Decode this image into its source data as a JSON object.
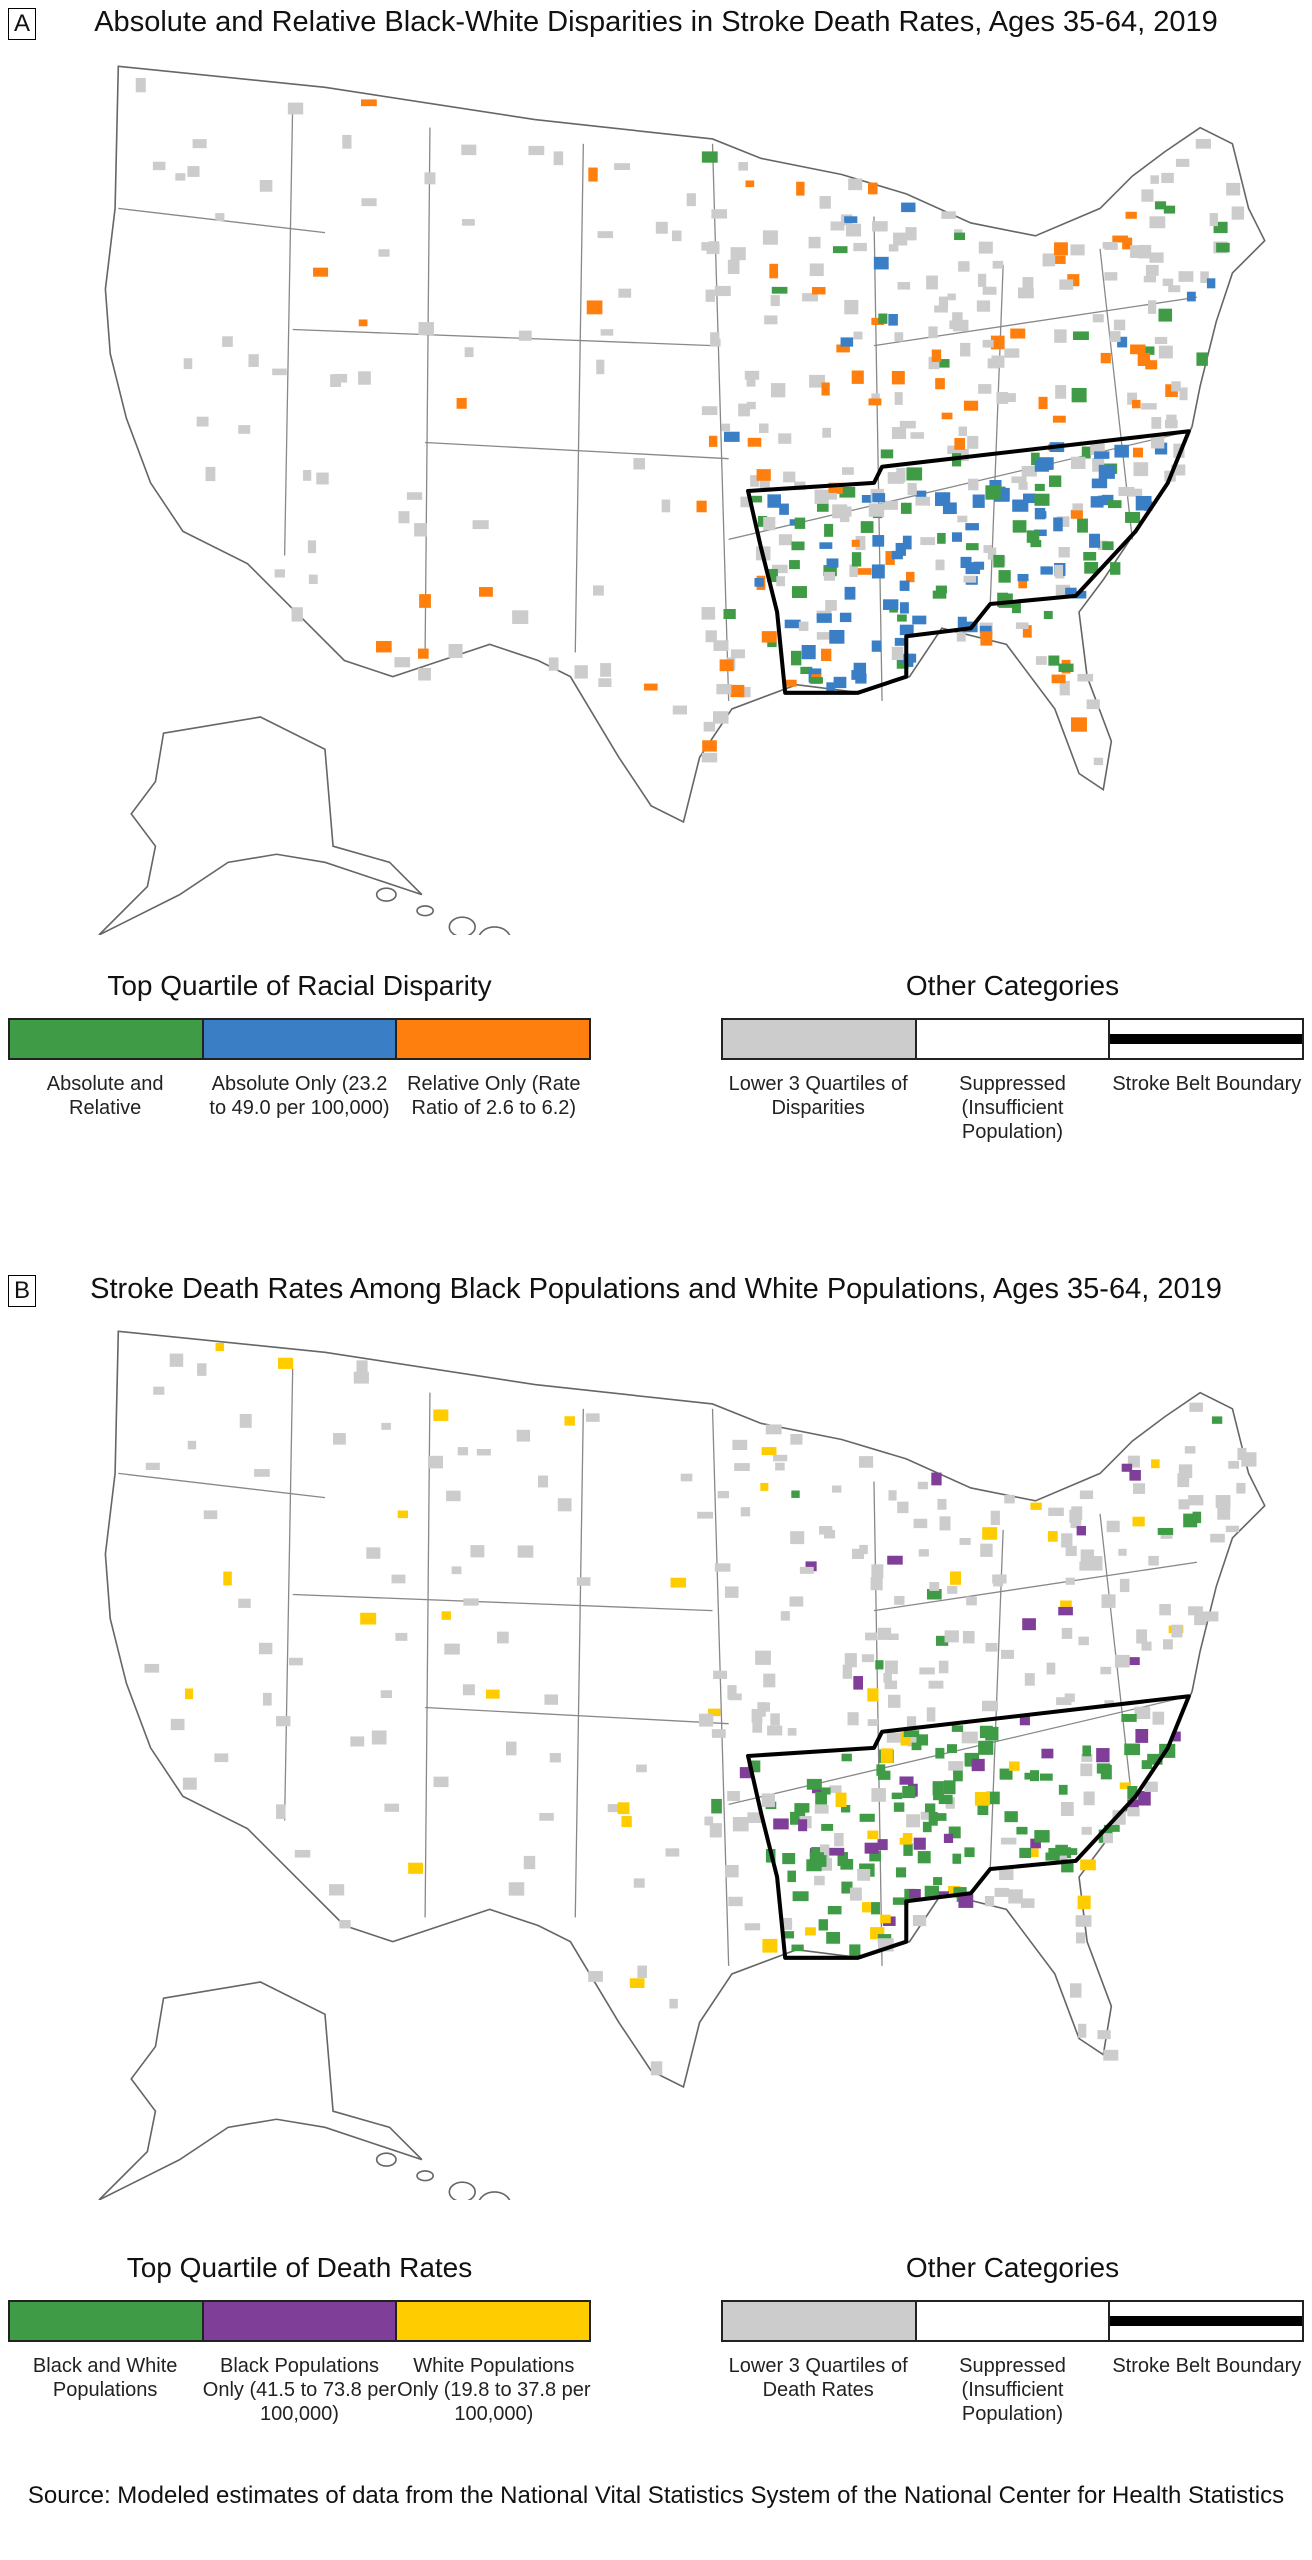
{
  "panel_a": {
    "letter": "A",
    "title": "Absolute and Relative Black-White Disparities in Stroke Death Rates, Ages 35-64, 2019",
    "legend_main": {
      "title": "Top Quartile of Racial Disparity",
      "items": [
        {
          "label": "Absolute and Relative",
          "color": "#3f9b45"
        },
        {
          "label": "Absolute Only (23.2 to 49.0 per 100,000)",
          "color": "#3a7fc6"
        },
        {
          "label": "Relative Only (Rate Ratio of 2.6 to 6.2)",
          "color": "#ff7f0e"
        }
      ]
    },
    "legend_other": {
      "title": "Other Categories",
      "items": [
        {
          "label": "Lower 3 Quartiles of Disparities",
          "color": "#cccccc"
        },
        {
          "label": "Suppressed (Insufficient Population)",
          "color": "#ffffff"
        },
        {
          "label": "Stroke Belt Boundary",
          "color": "#000000"
        }
      ]
    }
  },
  "panel_b": {
    "letter": "B",
    "title": "Stroke Death Rates Among Black Populations and White Populations, Ages 35-64, 2019",
    "legend_main": {
      "title": "Top Quartile of Death Rates",
      "items": [
        {
          "label": "Black and White Populations",
          "color": "#3f9b45"
        },
        {
          "label": "Black Populations Only (41.5 to 73.8 per 100,000)",
          "color": "#7f3f98"
        },
        {
          "label": "White Populations Only (19.8 to 37.8 per 100,000)",
          "color": "#ffcc00"
        }
      ]
    },
    "legend_other": {
      "title": "Other Categories",
      "items": [
        {
          "label": "Lower 3 Quartiles of Death Rates",
          "color": "#cccccc"
        },
        {
          "label": "Suppressed (Insufficient Population)",
          "color": "#ffffff"
        },
        {
          "label": "Stroke Belt Boundary",
          "color": "#000000"
        }
      ]
    }
  },
  "source": "Source: Modeled estimates of data from the National Vital Statistics System of the National Center for Health Statistics"
}
